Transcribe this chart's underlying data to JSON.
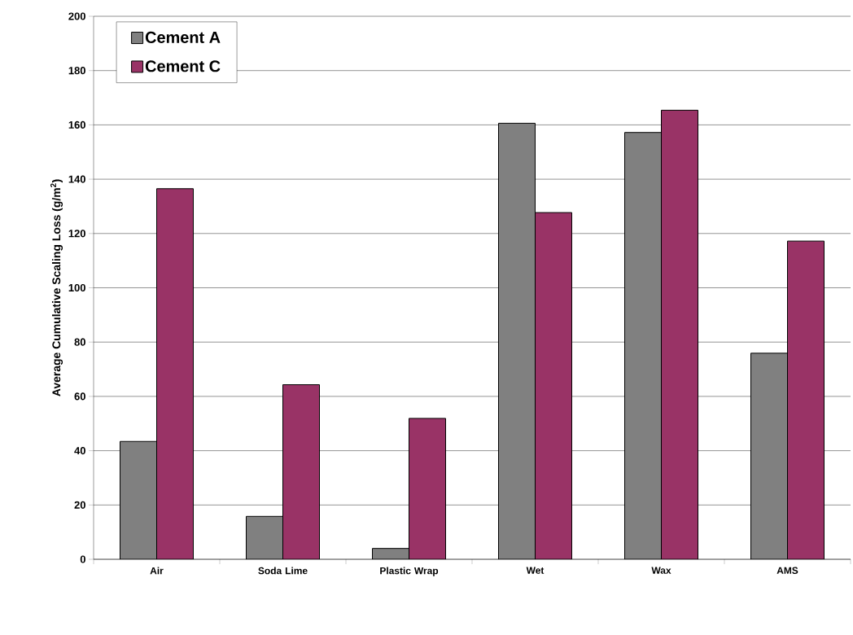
{
  "chart_data": {
    "type": "bar",
    "ylabel": "Average Cumulative Scaling Loss (g/m$^{2}$)",
    "categories": [
      "Air",
      "Soda Lime",
      "Plastic Wrap",
      "Wet",
      "Wax",
      "AMS"
    ],
    "series": [
      {
        "name": "Cement A",
        "color": "#808080",
        "values": [
          43.4,
          15.8,
          4.0,
          160.6,
          157.2,
          75.9
        ]
      },
      {
        "name": "Cement C",
        "color": "#993366",
        "values": [
          136.5,
          64.3,
          51.9,
          127.7,
          165.4,
          117.2
        ]
      }
    ],
    "ylim": [
      0,
      200
    ],
    "yticks": [
      0,
      20,
      40,
      60,
      80,
      100,
      120,
      140,
      160,
      180,
      200
    ],
    "grid": "y",
    "legend": "top left"
  }
}
